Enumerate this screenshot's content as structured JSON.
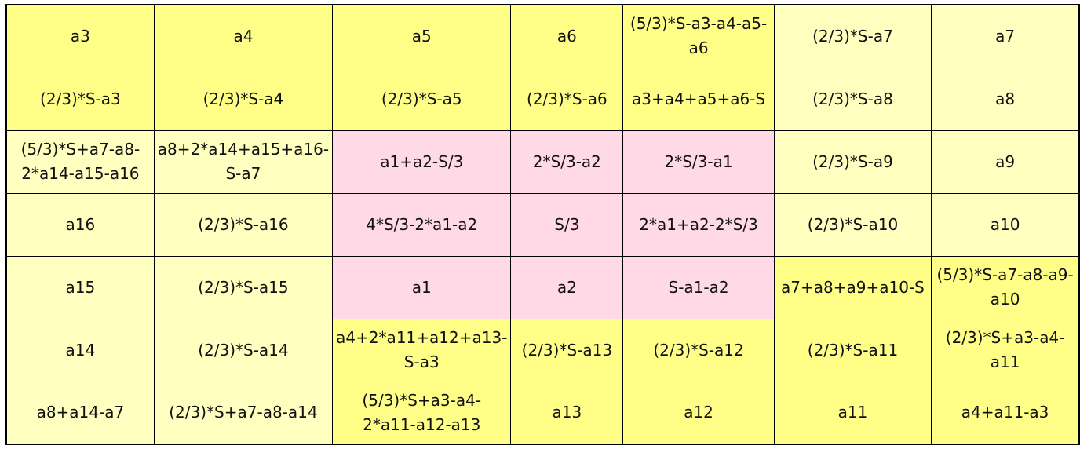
{
  "colors": {
    "bright_yellow": "#ffff88",
    "pale_yellow": "#ffffc0",
    "pink": "#ffd9e6"
  },
  "rows": [
    [
      "a3",
      "a4",
      "a5",
      "a6",
      "(5/3)*S-a3-a4-a5-a6",
      "(2/3)*S-a7",
      "a7"
    ],
    [
      "(2/3)*S-a3",
      "(2/3)*S-a4",
      "(2/3)*S-a5",
      "(2/3)*S-a6",
      "a3+a4+a5+a6-S",
      "(2/3)*S-a8",
      "a8"
    ],
    [
      "(5/3)*S+a7-a8-2*a14-a15-a16",
      "a8+2*a14+a15+a16-S-a7",
      "a1+a2-S/3",
      "2*S/3-a2",
      "2*S/3-a1",
      "(2/3)*S-a9",
      "a9"
    ],
    [
      "a16",
      "(2/3)*S-a16",
      "4*S/3-2*a1-a2",
      "S/3",
      "2*a1+a2-2*S/3",
      "(2/3)*S-a10",
      "a10"
    ],
    [
      "a15",
      "(2/3)*S-a15",
      "a1",
      "a2",
      "S-a1-a2",
      "a7+a8+a9+a10-S",
      "(5/3)*S-a7-a8-a9-a10"
    ],
    [
      "a14",
      "(2/3)*S-a14",
      "a4+2*a11+a12+a13-S-a3",
      "(2/3)*S-a13",
      "(2/3)*S-a12",
      "(2/3)*S-a11",
      "(2/3)*S+a3-a4-a11"
    ],
    [
      "a8+a14-a7",
      "(2/3)*S+a7-a8-a14",
      "(5/3)*S+a3-a4-2*a11-a12-a13",
      "a13",
      "a12",
      "a11",
      "a4+a11-a3"
    ]
  ]
}
